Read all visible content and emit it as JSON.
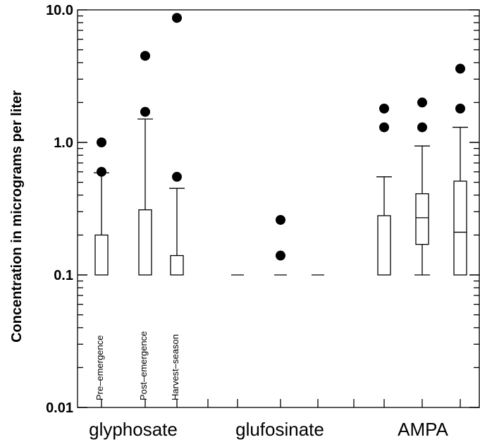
{
  "chart_data": {
    "type": "boxplot",
    "yscale": "log",
    "ylim": [
      0.01,
      10.0
    ],
    "ylabel": "Concentration in micrograms per liter",
    "yticks": [
      {
        "value": 0.01,
        "label": "0.01"
      },
      {
        "value": 0.1,
        "label": "0.1"
      },
      {
        "value": 1.0,
        "label": "1.0"
      },
      {
        "value": 10.0,
        "label": "10.0"
      }
    ],
    "categories": [
      "glyphosate",
      "glufosinate",
      "AMPA"
    ],
    "periods": [
      "Pre–emergence",
      "Post–emergence",
      "Harvest–season"
    ],
    "boxes": [
      {
        "category": "glyphosate",
        "period": "Pre–emergence",
        "lower": 0.1,
        "q1": 0.1,
        "median": 0.1,
        "q3": 0.2,
        "upper": 0.59,
        "outliers": [
          0.6,
          1.0
        ]
      },
      {
        "category": "glyphosate",
        "period": "Post–emergence",
        "lower": 0.1,
        "q1": 0.1,
        "median": 0.1,
        "q3": 0.31,
        "upper": 1.5,
        "outliers": [
          1.7,
          4.5
        ]
      },
      {
        "category": "glyphosate",
        "period": "Harvest–season",
        "lower": 0.1,
        "q1": 0.1,
        "median": 0.1,
        "q3": 0.14,
        "upper": 0.45,
        "outliers": [
          0.55,
          8.7
        ]
      },
      {
        "category": "glufosinate",
        "period": "Pre–emergence",
        "lower": 0.1,
        "q1": 0.1,
        "median": 0.1,
        "q3": 0.1,
        "upper": 0.1,
        "outliers": []
      },
      {
        "category": "glufosinate",
        "period": "Post–emergence",
        "lower": 0.1,
        "q1": 0.1,
        "median": 0.1,
        "q3": 0.1,
        "upper": 0.1,
        "outliers": [
          0.14,
          0.26
        ]
      },
      {
        "category": "glufosinate",
        "period": "Harvest–season",
        "lower": 0.1,
        "q1": 0.1,
        "median": 0.1,
        "q3": 0.1,
        "upper": 0.1,
        "outliers": []
      },
      {
        "category": "AMPA",
        "period": "Pre–emergence",
        "lower": 0.1,
        "q1": 0.1,
        "median": 0.1,
        "q3": 0.28,
        "upper": 0.55,
        "outliers": [
          1.3,
          1.8
        ]
      },
      {
        "category": "AMPA",
        "period": "Post–emergence",
        "lower": 0.1,
        "q1": 0.17,
        "median": 0.27,
        "q3": 0.41,
        "upper": 0.94,
        "outliers": [
          1.3,
          2.0
        ]
      },
      {
        "category": "AMPA",
        "period": "Harvest–season",
        "lower": 0.1,
        "q1": 0.1,
        "median": 0.21,
        "q3": 0.51,
        "upper": 1.3,
        "outliers": [
          1.8,
          3.6
        ]
      }
    ],
    "grid": false
  }
}
